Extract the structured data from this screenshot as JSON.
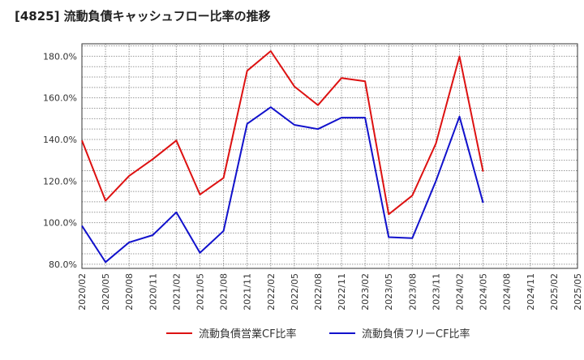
{
  "chart_data": {
    "type": "line",
    "title": "[4825]  流動負債キャッシュフロー比率の推移",
    "x": [
      "2020/02",
      "2020/05",
      "2020/08",
      "2020/11",
      "2021/02",
      "2021/05",
      "2021/08",
      "2021/11",
      "2022/02",
      "2022/05",
      "2022/08",
      "2022/11",
      "2023/02",
      "2023/05",
      "2023/08",
      "2023/11",
      "2024/02",
      "2024/05"
    ],
    "x_ticks": [
      "2020/02",
      "2020/05",
      "2020/08",
      "2020/11",
      "2021/02",
      "2021/05",
      "2021/08",
      "2021/11",
      "2022/02",
      "2022/05",
      "2022/08",
      "2022/11",
      "2023/02",
      "2023/05",
      "2023/08",
      "2023/11",
      "2024/02",
      "2024/05",
      "2024/08",
      "2024/11",
      "2025/02",
      "2025/05"
    ],
    "y_ticks": [
      80,
      100,
      120,
      140,
      160,
      180
    ],
    "y_tick_labels": [
      "80.0%",
      "100.0%",
      "120.0%",
      "140.0%",
      "160.0%",
      "180.0%"
    ],
    "ylim": [
      78,
      186
    ],
    "grid": true,
    "legend_position": "bottom",
    "series": [
      {
        "name": "流動負債営業CF比率",
        "color": "#dd1111",
        "values": [
          139.5,
          110.5,
          122.5,
          130.5,
          139.5,
          113.5,
          121.5,
          173.0,
          182.5,
          165.5,
          156.5,
          169.5,
          168.0,
          104.0,
          113.0,
          138.0,
          180.0,
          124.5
        ]
      },
      {
        "name": "流動負債フリーCF比率",
        "color": "#1111cc",
        "values": [
          98.5,
          81.0,
          90.5,
          94.0,
          105.0,
          85.5,
          96.0,
          147.5,
          155.5,
          147.0,
          145.0,
          150.5,
          150.5,
          93.0,
          92.5,
          120.0,
          151.0,
          109.5
        ]
      }
    ]
  }
}
